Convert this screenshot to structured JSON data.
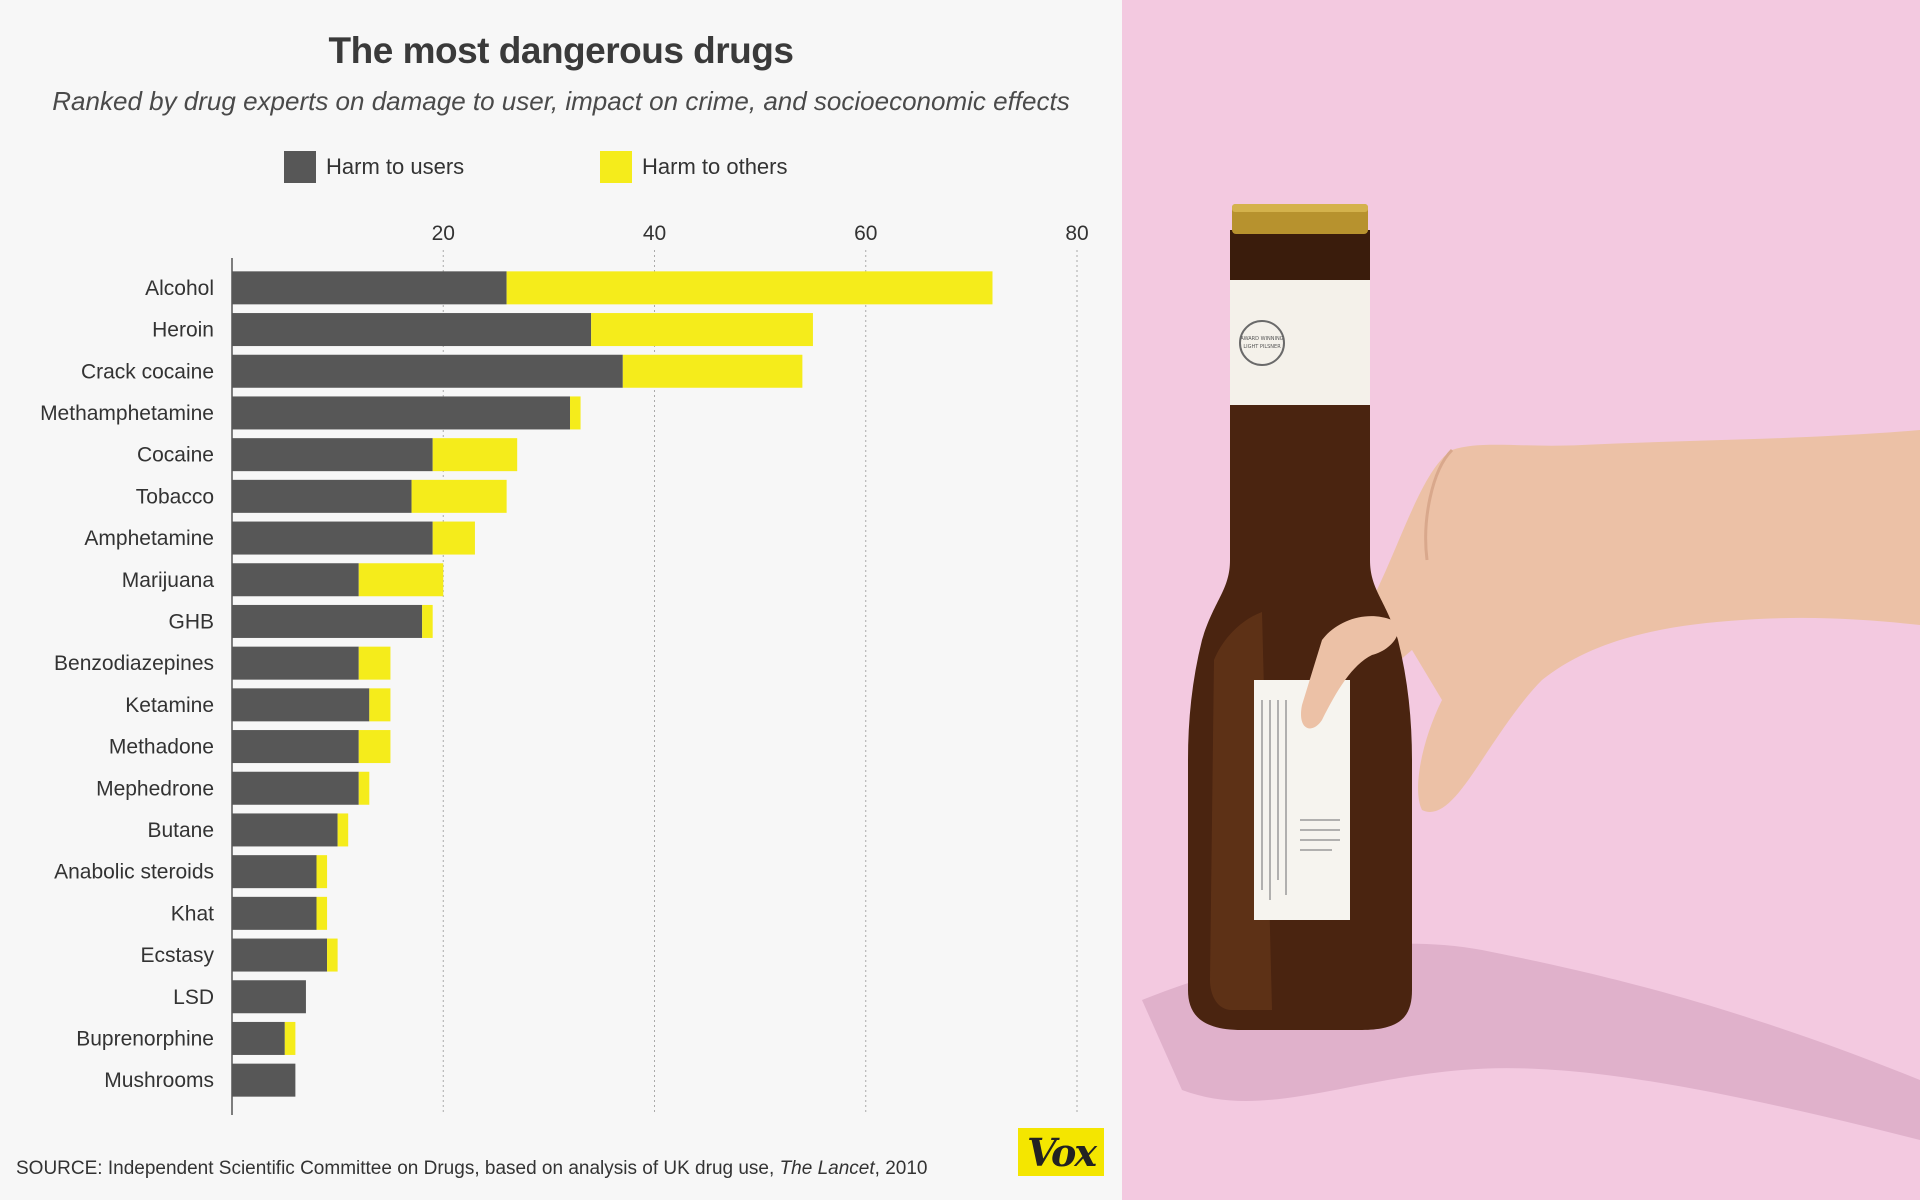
{
  "colors": {
    "harm_to_users": "#575757",
    "harm_to_others": "#f5ec1b",
    "background": "#f7f7f7",
    "photo_background": "#f3c9e0",
    "vox_yellow": "#f4e600"
  },
  "source": {
    "prefix": "SOURCE: Independent Scientific Committee on Drugs, based on analysis of UK drug use, ",
    "journal": "The Lancet",
    "suffix": ", 2010"
  },
  "logo": {
    "text": "Vox"
  },
  "photo": {
    "label_text": "AWARD WINNING LIGHT PILSNER"
  },
  "chart_data": {
    "type": "bar",
    "orientation": "horizontal",
    "stacked": true,
    "title": "The most dangerous drugs",
    "subtitle": "Ranked by drug experts on damage to user, impact on crime, and socioeconomic effects",
    "legend_position": "top",
    "grid": true,
    "xlim": [
      0,
      80
    ],
    "x_ticks": [
      "20",
      "40",
      "60",
      "80"
    ],
    "categories": [
      "Alcohol",
      "Heroin",
      "Crack cocaine",
      "Methamphetamine",
      "Cocaine",
      "Tobacco",
      "Amphetamine",
      "Marijuana",
      "GHB",
      "Benzodiazepines",
      "Ketamine",
      "Methadone",
      "Mephedrone",
      "Butane",
      "Anabolic steroids",
      "Khat",
      "Ecstasy",
      "LSD",
      "Buprenorphine",
      "Mushrooms"
    ],
    "series": [
      {
        "name": "Harm to users",
        "values": [
          26,
          34,
          37,
          32,
          19,
          17,
          19,
          12,
          18,
          12,
          13,
          12,
          12,
          10,
          8,
          8,
          9,
          7,
          5,
          6
        ]
      },
      {
        "name": "Harm to others",
        "values": [
          46,
          21,
          17,
          1,
          8,
          9,
          4,
          8,
          1,
          3,
          2,
          3,
          1,
          1,
          1,
          1,
          1,
          0,
          1,
          0
        ]
      }
    ]
  }
}
